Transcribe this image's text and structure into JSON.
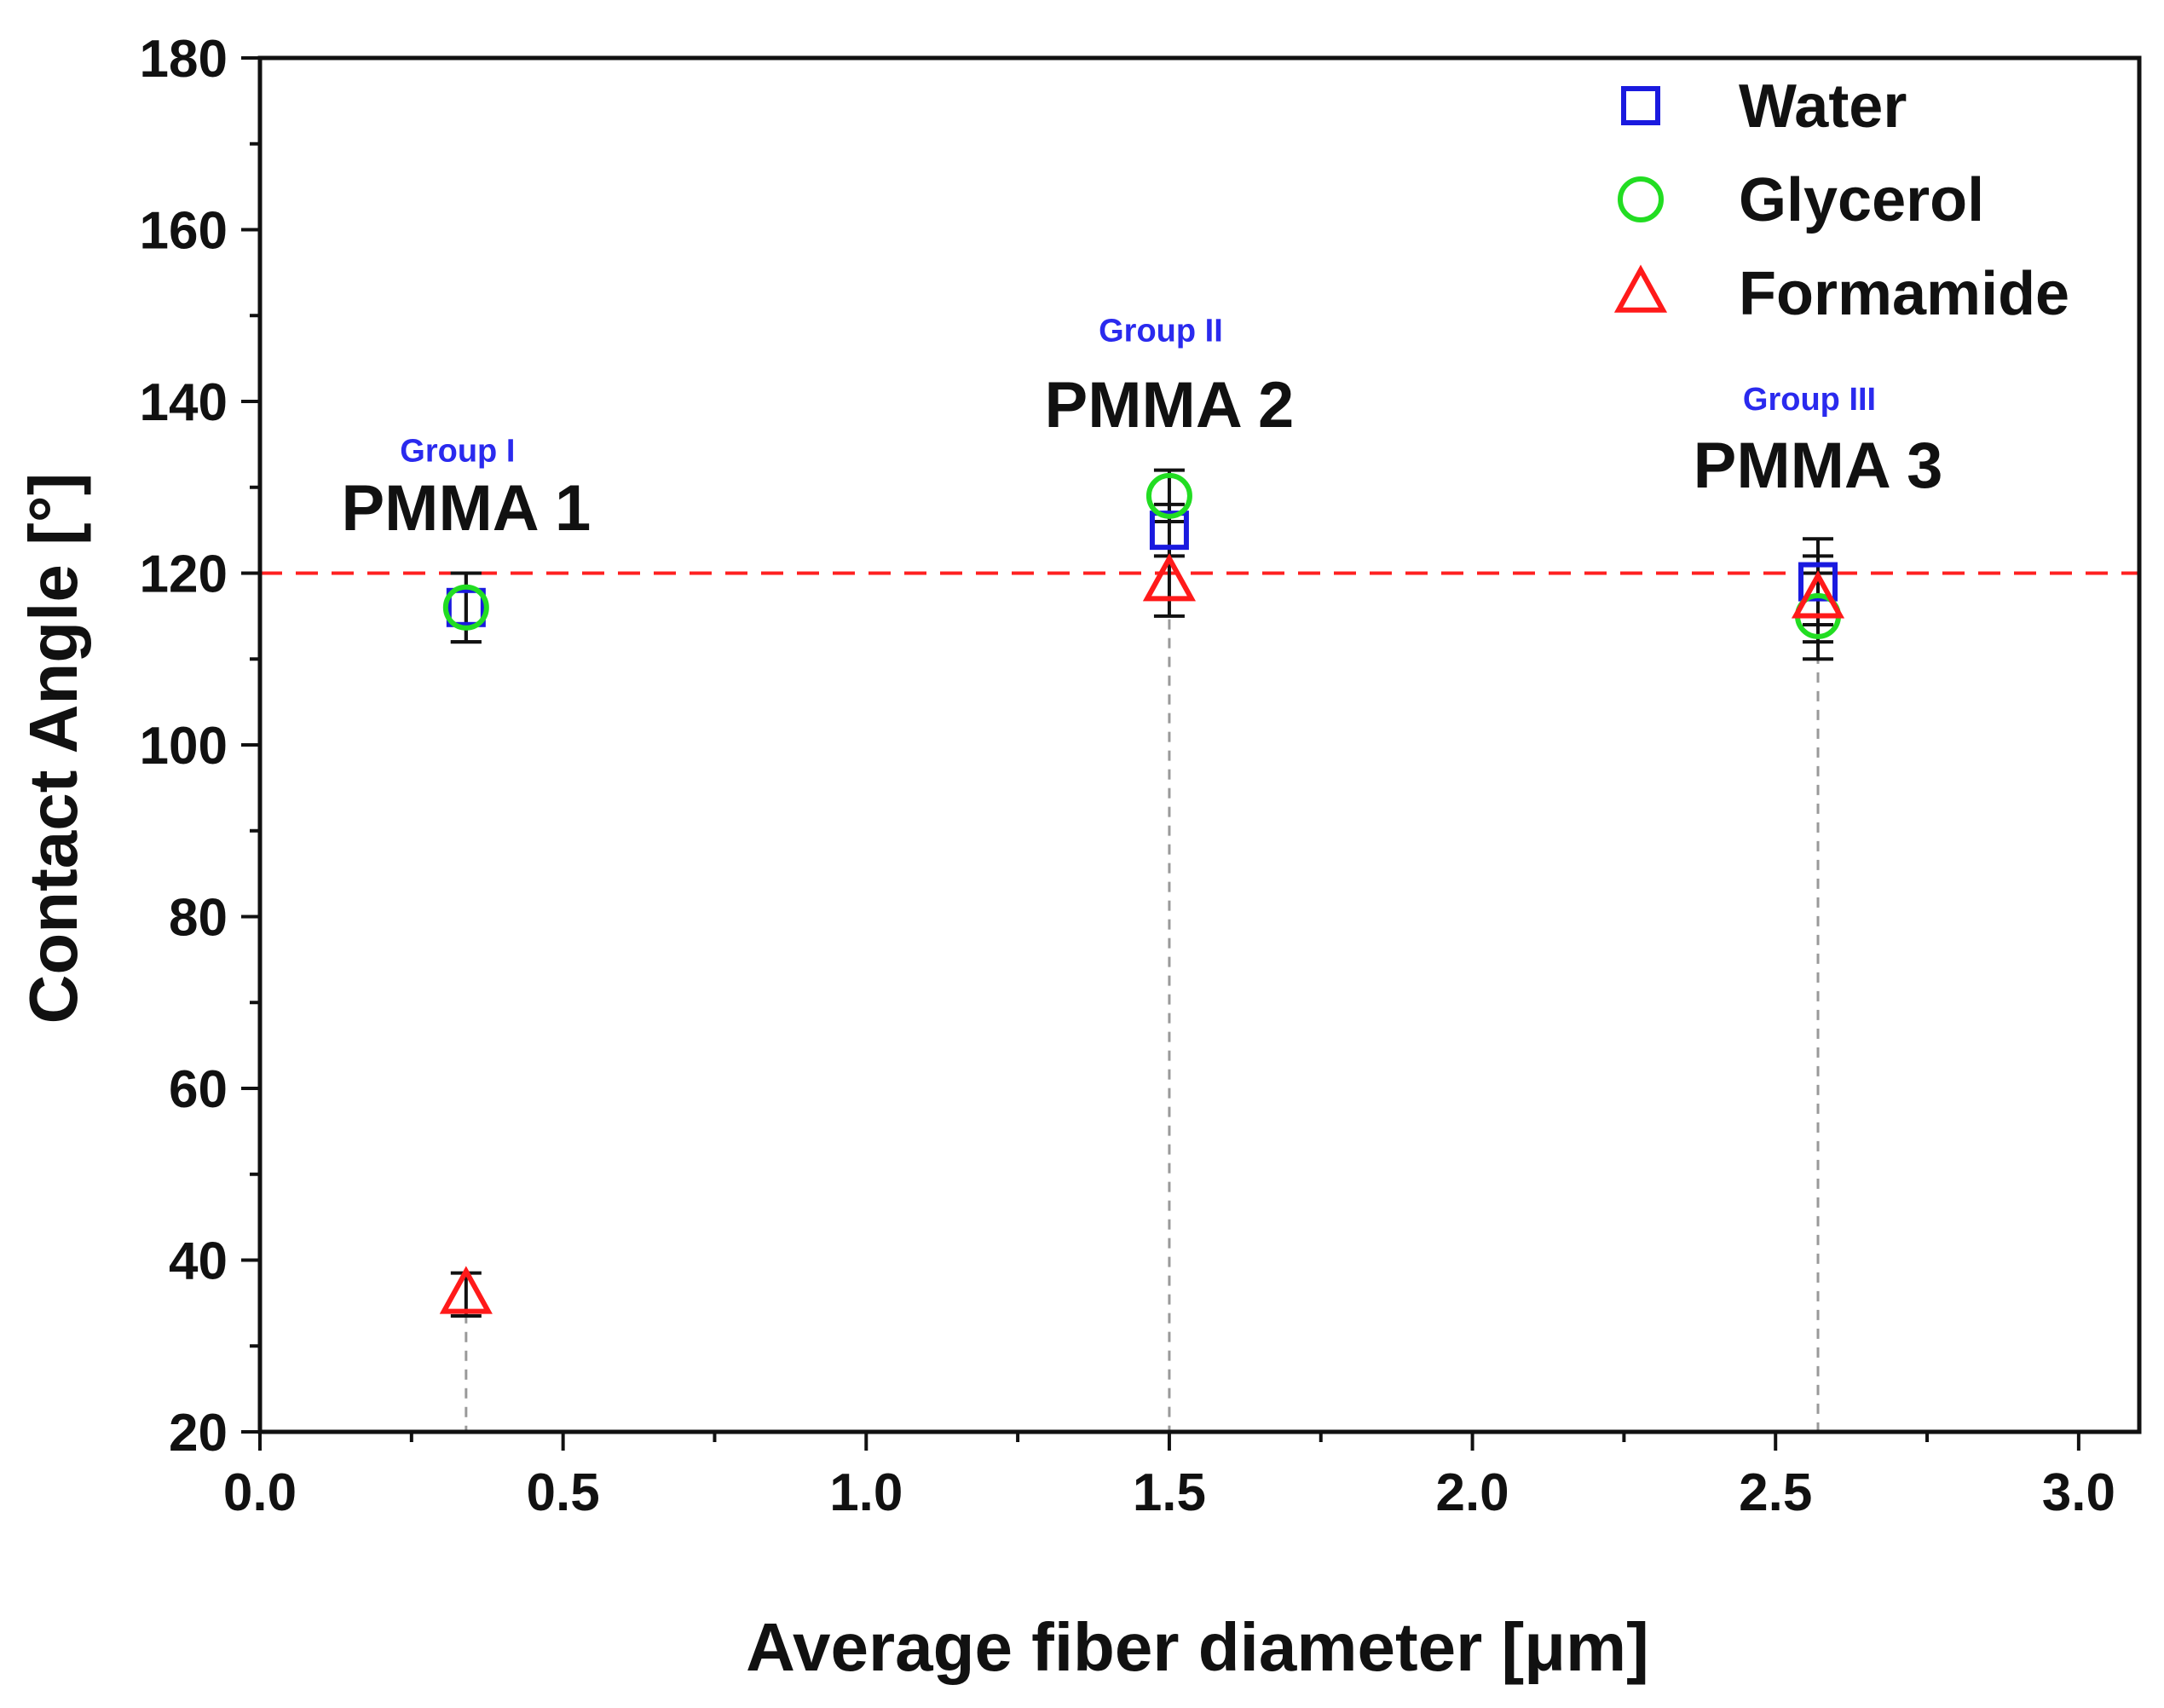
{
  "chart_data": {
    "type": "scatter",
    "title": "",
    "xlabel": "Average fiber diameter [μm]",
    "ylabel": "Contact Angle [°]",
    "xlim": [
      0.0,
      3.1
    ],
    "ylim": [
      20,
      180
    ],
    "x_ticks": [
      "0.0",
      "0.5",
      "1.0",
      "1.5",
      "2.0",
      "2.5",
      "3.0"
    ],
    "x_tick_values": [
      0.0,
      0.5,
      1.0,
      1.5,
      2.0,
      2.5,
      3.0
    ],
    "y_ticks": [
      "20",
      "40",
      "60",
      "80",
      "100",
      "120",
      "140",
      "160",
      "180"
    ],
    "y_tick_values": [
      20,
      40,
      60,
      80,
      100,
      120,
      140,
      160,
      180
    ],
    "reference_line": {
      "y": 120,
      "color": "#ff2020",
      "style": "dashed"
    },
    "legend_position": "top-right",
    "series": [
      {
        "name": "Water",
        "marker": "square",
        "color": "#1a1adf",
        "points": [
          {
            "x": 0.34,
            "y": 116,
            "err": 4
          },
          {
            "x": 1.5,
            "y": 125,
            "err": 3
          },
          {
            "x": 2.57,
            "y": 119,
            "err": 5
          }
        ]
      },
      {
        "name": "Glycerol",
        "marker": "circle",
        "color": "#22dd22",
        "points": [
          {
            "x": 0.34,
            "y": 116,
            "err": 4
          },
          {
            "x": 1.5,
            "y": 129,
            "err": 3
          },
          {
            "x": 2.57,
            "y": 115,
            "err": 5
          }
        ]
      },
      {
        "name": "Formamide",
        "marker": "triangle",
        "color": "#ff1a1a",
        "points": [
          {
            "x": 0.34,
            "y": 36,
            "err": 2.5
          },
          {
            "x": 1.5,
            "y": 119,
            "err": 4
          },
          {
            "x": 2.57,
            "y": 117,
            "err": 5
          }
        ]
      }
    ],
    "samples": [
      {
        "name": "PMMA 1",
        "group": "Group I",
        "x": 0.34,
        "label_y": 125,
        "group_y": 133
      },
      {
        "name": "PMMA 2",
        "group": "Group II",
        "x": 1.5,
        "label_y": 137,
        "group_y": 147
      },
      {
        "name": "PMMA 3",
        "group": "Group III",
        "x": 2.57,
        "label_y": 130,
        "group_y": 139
      }
    ],
    "group_label_color": "#2a2aee"
  }
}
